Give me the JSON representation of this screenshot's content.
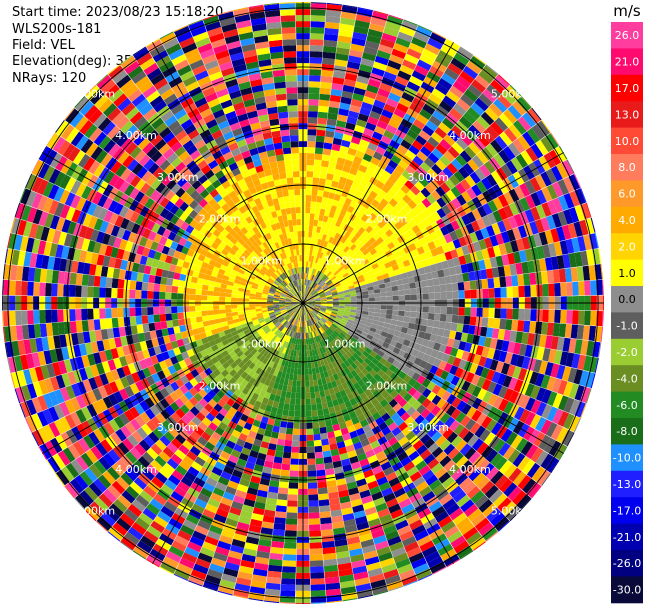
{
  "header": {
    "start_time": "Start time: 2023/08/23 15:18:20",
    "instrument": "WLS200s-181",
    "field": "Field: VEL",
    "elevation": "Elevation(deg): 35.30",
    "nrays": "NRays: 120"
  },
  "chart_data": {
    "type": "polar-ppi",
    "field": "VEL",
    "unit_label": "m/s",
    "n_rays": 120,
    "elevation_deg": 35.3,
    "range_rings_km": [
      1,
      2,
      3,
      4,
      5
    ],
    "ring_labels": [
      "1.00km",
      "2.00km",
      "3.00km",
      "4.00km",
      "5.00km"
    ],
    "max_range_km": 5.1,
    "colorbar": {
      "ticks": [
        "26.0",
        "21.0",
        "17.0",
        "13.0",
        "10.0",
        "8.0",
        "6.0",
        "4.0",
        "2.0",
        "1.0",
        "0.0",
        "-1.0",
        "-2.0",
        "-4.0",
        "-6.0",
        "-8.0",
        "-10.0",
        "-13.0",
        "-17.0",
        "-21.0",
        "-26.0",
        "-30.0"
      ],
      "colors": [
        "#ff3d9e",
        "#ff0a6e",
        "#ff0000",
        "#e81a1a",
        "#ff4a36",
        "#ff7c5c",
        "#ff9a2a",
        "#ffaa00",
        "#ffd400",
        "#ffff00",
        "#8e8e8e",
        "#5e5e5e",
        "#9acd32",
        "#6b8e23",
        "#228b22",
        "#1a6e1a",
        "#1e90ff",
        "#1f1fff",
        "#0000ee",
        "#0000b0",
        "#000080",
        "#0a0a3a"
      ],
      "range": [
        -30,
        30
      ]
    }
  }
}
